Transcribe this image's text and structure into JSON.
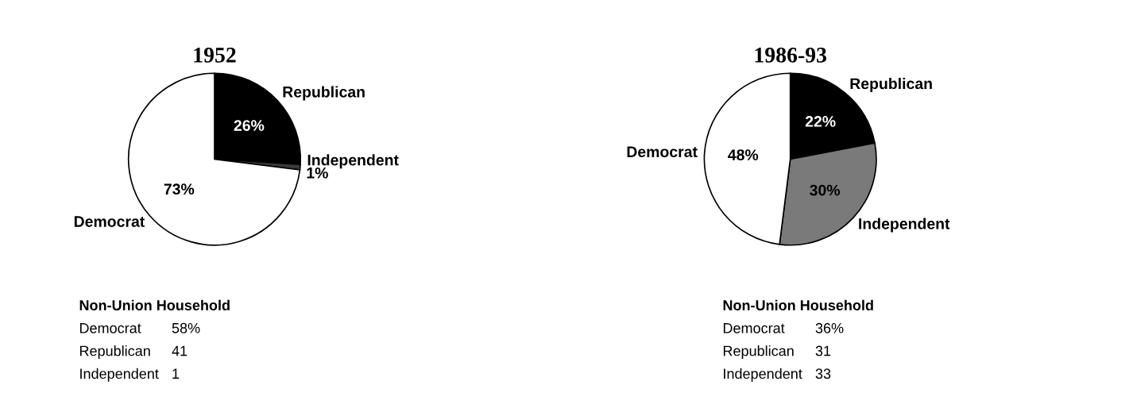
{
  "chart_data": [
    {
      "type": "pie",
      "title": "1952",
      "categories": [
        "Republican",
        "Independent",
        "Democrat"
      ],
      "values": [
        26,
        1,
        73
      ],
      "colors": [
        "#000000",
        "#3a3a3a",
        "#ffffff"
      ],
      "value_labels": [
        "26%",
        "1%",
        "73%"
      ],
      "annotations": [
        "Non-Union Household",
        "Democrat",
        "58%",
        "Republican",
        "41",
        "Independent",
        "1"
      ]
    },
    {
      "type": "pie",
      "title": "1986-93",
      "categories": [
        "Republican",
        "Independent",
        "Democrat"
      ],
      "values": [
        22,
        30,
        48
      ],
      "colors": [
        "#000000",
        "#7a7a7a",
        "#ffffff"
      ],
      "value_labels": [
        "22%",
        "30%",
        "48%"
      ],
      "annotations": [
        "Non-Union Household",
        "Democrat",
        "36%",
        "Republican",
        "31",
        "Independent",
        "33"
      ]
    }
  ]
}
